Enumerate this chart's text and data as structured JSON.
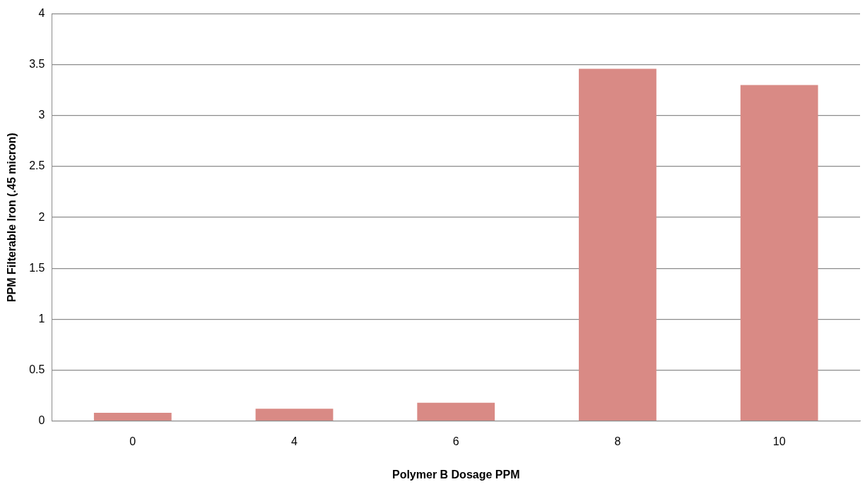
{
  "chart_data": {
    "type": "bar",
    "xlabel": "Polymer B Dosage PPM",
    "ylabel": "PPM Filterable Iron (.45 micron)",
    "categories": [
      "0",
      "4",
      "6",
      "8",
      "10"
    ],
    "values": [
      0.08,
      0.12,
      0.18,
      3.46,
      3.3
    ],
    "color": "#d98a85",
    "ylim": [
      0,
      4
    ],
    "yticks": [
      0,
      0.5,
      1,
      1.5,
      2,
      2.5,
      3,
      3.5,
      4
    ],
    "grid": "y"
  }
}
